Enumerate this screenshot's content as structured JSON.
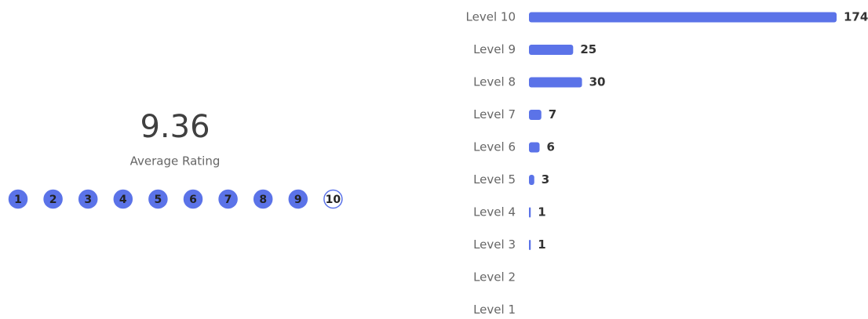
{
  "summary": {
    "average": 9.36,
    "label": "Average Rating",
    "scale": [
      "1",
      "2",
      "3",
      "4",
      "5",
      "6",
      "7",
      "8",
      "9",
      "10"
    ]
  },
  "chart_data": {
    "type": "bar",
    "orientation": "horizontal",
    "color": "#5b73e8",
    "categories": [
      "Level 10",
      "Level 9",
      "Level 8",
      "Level 7",
      "Level 6",
      "Level 5",
      "Level 4",
      "Level 3",
      "Level 2",
      "Level 1"
    ],
    "values": [
      174,
      25,
      30,
      7,
      6,
      3,
      1,
      1,
      0,
      0
    ]
  }
}
